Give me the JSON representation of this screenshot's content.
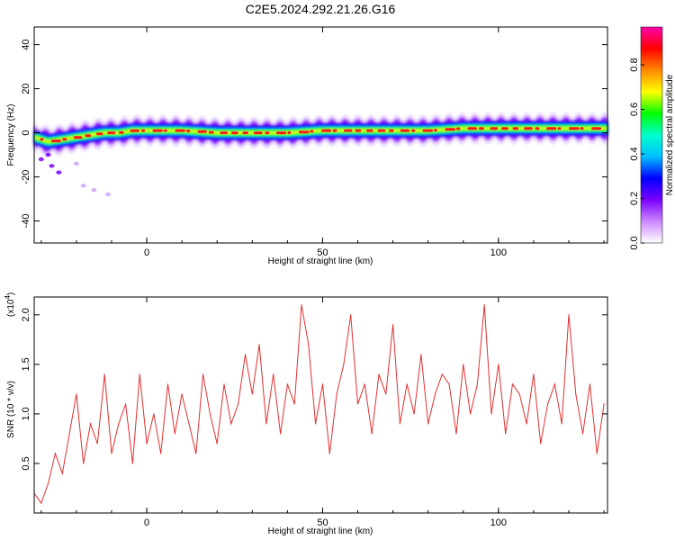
{
  "title": "C2E5.2024.292.21.26.G16",
  "top_plot": {
    "ylabel": "Frequency (Hz)",
    "xlabel": "Height of straight line (km)"
  },
  "bottom_plot": {
    "ylabel": "SNR (10 * v/v)",
    "exponent_label": "(x10",
    "exponent_power": "4",
    "exponent_close": ")",
    "xlabel": "Height of straight line (km)"
  },
  "colorbar": {
    "label": "Normalized spectral amplitude",
    "ticks": [
      "0.0",
      "0.2",
      "0.4",
      "0.6",
      "0.8"
    ],
    "colors": [
      "#ffffff",
      "#cc88ff",
      "#7a00ff",
      "#0000ff",
      "#00bfff",
      "#00ffcc",
      "#00ff00",
      "#ffff00",
      "#ff8800",
      "#ff0000",
      "#ff00aa"
    ]
  },
  "chart_data": [
    {
      "type": "heatmap",
      "title": "C2E5.2024.292.21.26.G16",
      "xlabel": "Height of straight line (km)",
      "ylabel": "Frequency (Hz)",
      "xlim": [
        -32,
        131
      ],
      "ylim": [
        -50,
        48
      ],
      "x_ticks": [
        0,
        50,
        100
      ],
      "y_ticks": [
        -40,
        -20,
        0,
        20,
        40
      ],
      "ridge": {
        "x": [
          -32,
          -28,
          -24,
          -20,
          -16,
          -12,
          -8,
          -4,
          0,
          10,
          20,
          30,
          40,
          50,
          60,
          70,
          80,
          90,
          100,
          110,
          120,
          131
        ],
        "y": [
          -2,
          -4,
          -3,
          -2,
          -1,
          0,
          0,
          1,
          1,
          1,
          0,
          0,
          0,
          1,
          1,
          1,
          1,
          2,
          2,
          2,
          2,
          2
        ]
      },
      "scatter_low": {
        "x": [
          -30,
          -28,
          -27,
          -25,
          -20,
          -18,
          -15,
          -11
        ],
        "y": [
          -12,
          -10,
          -15,
          -18,
          -14,
          -24,
          -26,
          -28
        ]
      },
      "colorbar_range": [
        0,
        0.97
      ]
    },
    {
      "type": "line",
      "xlabel": "Height of straight line (km)",
      "ylabel": "SNR (10 * v/v)",
      "y_scale": "x10^4",
      "xlim": [
        -32,
        131
      ],
      "ylim": [
        0,
        2.18
      ],
      "x_ticks": [
        0,
        50,
        100
      ],
      "y_ticks": [
        0.5,
        1.0,
        1.5,
        2.0
      ],
      "series": [
        {
          "color": "#e03030",
          "x": [
            -32,
            -30,
            -28,
            -26,
            -24,
            -22,
            -20,
            -18,
            -16,
            -14,
            -12,
            -10,
            -8,
            -6,
            -4,
            -2,
            0,
            2,
            4,
            6,
            8,
            10,
            12,
            14,
            16,
            18,
            20,
            22,
            24,
            26,
            28,
            30,
            32,
            34,
            36,
            38,
            40,
            42,
            44,
            46,
            48,
            50,
            52,
            54,
            56,
            58,
            60,
            62,
            64,
            66,
            68,
            70,
            72,
            74,
            76,
            78,
            80,
            82,
            84,
            86,
            88,
            90,
            92,
            94,
            96,
            98,
            100,
            102,
            104,
            106,
            108,
            110,
            112,
            114,
            116,
            118,
            120,
            122,
            124,
            126,
            128,
            130
          ],
          "y": [
            0.2,
            0.1,
            0.3,
            0.6,
            0.4,
            0.8,
            1.2,
            0.5,
            0.9,
            0.7,
            1.4,
            0.6,
            0.9,
            1.1,
            0.5,
            1.4,
            0.7,
            1.0,
            0.6,
            1.3,
            0.8,
            1.2,
            0.9,
            0.6,
            1.4,
            1.0,
            0.7,
            1.3,
            0.9,
            1.1,
            1.6,
            1.2,
            1.7,
            0.9,
            1.4,
            0.8,
            1.3,
            1.1,
            2.1,
            1.7,
            0.9,
            1.3,
            0.6,
            1.2,
            1.5,
            2.0,
            1.1,
            1.3,
            0.8,
            1.4,
            1.2,
            1.9,
            0.9,
            1.3,
            1.0,
            1.6,
            0.9,
            1.2,
            1.4,
            1.3,
            0.8,
            1.5,
            1.0,
            1.3,
            2.1,
            1.0,
            1.5,
            0.8,
            1.3,
            1.2,
            0.9,
            1.4,
            0.7,
            1.1,
            1.3,
            0.9,
            2.0,
            1.2,
            0.8,
            1.3,
            0.6,
            1.1
          ]
        }
      ]
    }
  ]
}
